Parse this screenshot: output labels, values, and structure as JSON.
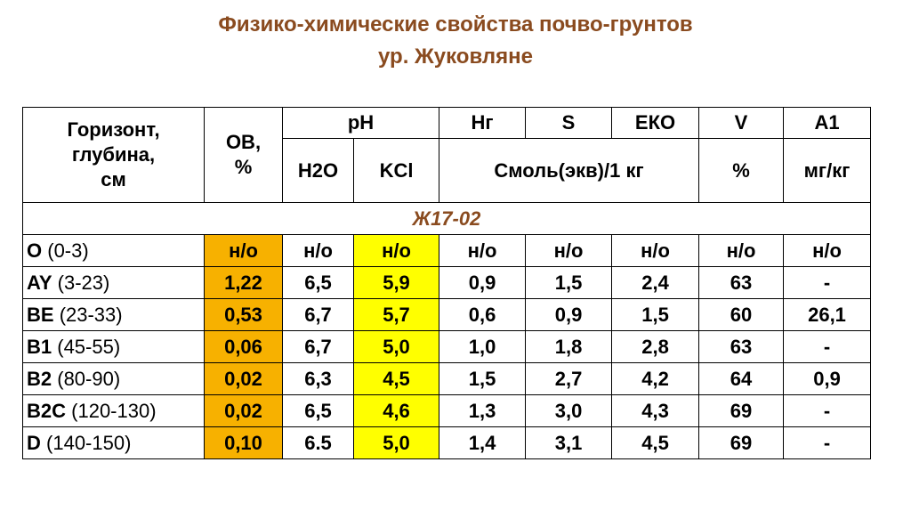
{
  "title": [
    "Физико-химические свойства почво-грунтов",
    "ур. Жуковляне"
  ],
  "table": {
    "header": {
      "horizon": [
        "Горизонт,",
        "глубина,",
        "см"
      ],
      "ob": [
        "ОВ,",
        "%"
      ],
      "ph": "pH",
      "hg": "Hг",
      "s": "S",
      "eko": "ЕКО",
      "v": "V",
      "a1": "A1",
      "h2o": "H2O",
      "kcl": "KCl",
      "smol": "Смоль(экв)/1 кг",
      "pct": "%",
      "mgkg": "мг/кг"
    },
    "section": "Ж17-02",
    "rows": [
      {
        "name": "O",
        "depth": "(0-3)",
        "cells": [
          "н/о",
          "н/о",
          "н/о",
          "н/о",
          "н/о",
          "н/о",
          "н/о",
          "н/о"
        ]
      },
      {
        "name": "AY",
        "depth": "(3-23)",
        "cells": [
          "1,22",
          "6,5",
          "5,9",
          "0,9",
          "1,5",
          "2,4",
          "63",
          "-"
        ]
      },
      {
        "name": "BE",
        "depth": "(23-33)",
        "cells": [
          "0,53",
          "6,7",
          "5,7",
          "0,6",
          "0,9",
          "1,5",
          "60",
          "26,1"
        ]
      },
      {
        "name": "B1",
        "depth": "(45-55)",
        "cells": [
          "0,06",
          "6,7",
          "5,0",
          "1,0",
          "1,8",
          "2,8",
          "63",
          "-"
        ]
      },
      {
        "name": "B2",
        "depth": "(80-90)",
        "cells": [
          "0,02",
          "6,3",
          "4,5",
          "1,5",
          "2,7",
          "4,2",
          "64",
          "0,9"
        ]
      },
      {
        "name": "B2C",
        "depth": "(120-130)",
        "cells": [
          "0,02",
          "6,5",
          "4,6",
          "1,3",
          "3,0",
          "4,3",
          "69",
          "-"
        ]
      },
      {
        "name": "D",
        "depth": "(140-150)",
        "cells": [
          "0,10",
          "6.5",
          "5,0",
          "1,4",
          "3,1",
          "4,5",
          "69",
          "-"
        ]
      }
    ]
  }
}
